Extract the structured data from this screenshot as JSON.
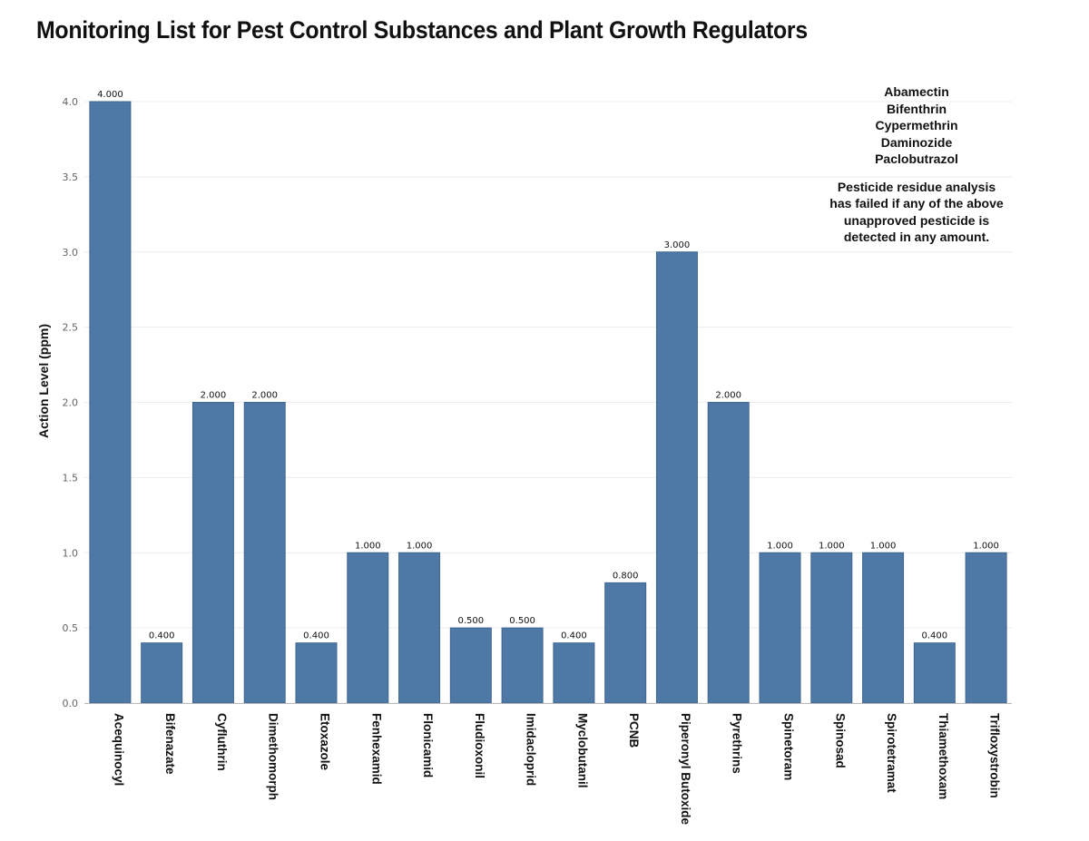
{
  "chart_data": {
    "type": "bar",
    "title": "Monitoring List for Pest Control Substances and Plant Growth Regulators",
    "ylabel": "Action Level (ppm)",
    "xlabel": "",
    "ylim": [
      0,
      4.0
    ],
    "yticks": [
      "0.0",
      "0.5",
      "1.0",
      "1.5",
      "2.0",
      "2.5",
      "3.0",
      "3.5",
      "4.0"
    ],
    "grid": true,
    "bar_color": "#4e79a7",
    "categories": [
      "Acequinocyl",
      "Bifenazate",
      "Cyfluthrin",
      "Dimethomorph",
      "Etoxazole",
      "Fenhexamid",
      "Flonicamid",
      "Fludioxonil",
      "Imidacloprid",
      "Myclobutanil",
      "PCNB",
      "Piperonyl Butoxide",
      "Pyrethrins",
      "Spinetoram",
      "Spinosad",
      "Spirotetramat",
      "Thiamethoxam",
      "Trifloxystrobin"
    ],
    "values": [
      4.0,
      0.4,
      2.0,
      2.0,
      0.4,
      1.0,
      1.0,
      0.5,
      0.5,
      0.4,
      0.8,
      3.0,
      2.0,
      1.0,
      1.0,
      1.0,
      0.4,
      1.0
    ],
    "data_labels": [
      "4.000",
      "0.400",
      "2.000",
      "2.000",
      "0.400",
      "1.000",
      "1.000",
      "0.500",
      "0.500",
      "0.400",
      "0.800",
      "3.000",
      "2.000",
      "1.000",
      "1.000",
      "1.000",
      "0.400",
      "1.000"
    ],
    "annotation": {
      "items": [
        "Abamectin",
        "Bifenthrin",
        "Cypermethrin",
        "Daminozide",
        "Paclobutrazol"
      ],
      "note": [
        "Pesticide residue analysis",
        "has failed if any of the above",
        "unapproved pesticide is",
        "detected in any amount."
      ]
    }
  }
}
